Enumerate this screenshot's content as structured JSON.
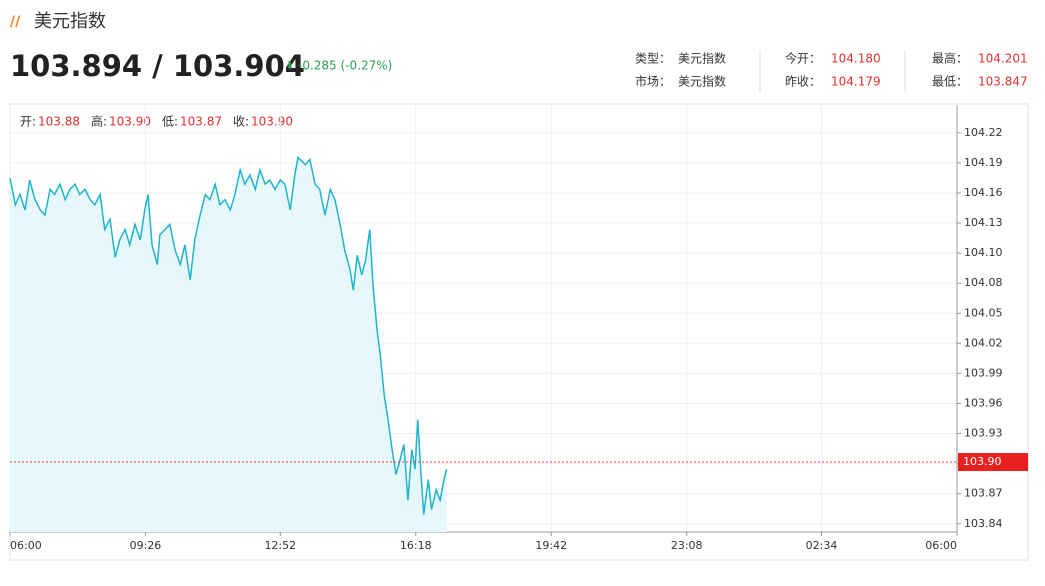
{
  "header": {
    "title": "美元指数",
    "price": "103.894 / 103.904",
    "change": "-0.285 (-0.27%)",
    "info": [
      [
        {
          "label": "类型：",
          "value": "美元指数"
        },
        {
          "label": "今开：",
          "value": "104.180"
        },
        {
          "label": "最高：",
          "value": "104.201"
        }
      ],
      [
        {
          "label": "市场：",
          "value": "美元指数"
        },
        {
          "label": "昨收：",
          "value": "104.179"
        },
        {
          "label": "最低：",
          "value": "103.847"
        }
      ]
    ]
  },
  "ohlc": [
    {
      "label": "开:",
      "value": "103.88"
    },
    {
      "label": "高:",
      "value": "103.90"
    },
    {
      "label": "低:",
      "value": "103.87"
    },
    {
      "label": "收:",
      "value": "103.90"
    }
  ],
  "chart_data": {
    "type": "area",
    "color": "#1eb4cc",
    "fill": "#e6f8fa",
    "grid": true,
    "x": [
      0,
      8,
      15,
      23,
      30,
      38,
      46,
      53,
      61,
      68,
      76,
      84,
      91,
      99,
      106,
      114,
      122,
      129,
      137,
      144,
      152,
      160,
      167,
      175,
      182,
      190,
      198,
      205,
      210,
      216,
      224,
      228,
      236,
      243,
      251,
      259,
      266,
      274,
      281,
      289,
      297,
      304,
      312,
      319,
      327,
      335,
      342,
      350,
      357,
      365,
      373,
      380,
      388,
      395,
      403,
      411,
      418,
      426,
      433,
      438,
      449,
      456,
      464,
      471,
      479,
      487,
      494,
      502,
      509,
      517,
      522,
      528,
      535,
      541,
      547,
      552,
      558,
      563,
      569,
      575,
      581,
      587,
      593,
      599,
      605,
      611,
      616,
      620,
      625,
      629,
      636,
      641,
      648,
      654,
      660,
      664
    ],
    "values": [
      104.176,
      104.15,
      104.16,
      104.145,
      104.174,
      104.155,
      104.145,
      104.14,
      104.165,
      104.16,
      104.17,
      104.155,
      104.165,
      104.17,
      104.16,
      104.165,
      104.155,
      104.15,
      104.16,
      104.126,
      104.136,
      104.099,
      104.116,
      104.126,
      104.111,
      104.131,
      104.116,
      104.145,
      104.16,
      104.111,
      104.092,
      104.121,
      104.126,
      104.131,
      104.106,
      104.092,
      104.111,
      104.077,
      104.116,
      104.14,
      104.16,
      104.155,
      104.17,
      104.15,
      104.155,
      104.145,
      104.16,
      104.184,
      104.17,
      104.179,
      104.165,
      104.184,
      104.17,
      104.174,
      104.165,
      104.174,
      104.17,
      104.145,
      104.179,
      104.196,
      104.189,
      104.194,
      104.17,
      104.165,
      104.14,
      104.165,
      104.155,
      104.131,
      104.106,
      104.087,
      104.067,
      104.101,
      104.082,
      104.097,
      104.126,
      104.072,
      104.029,
      104.004,
      103.965,
      103.941,
      103.912,
      103.888,
      103.902,
      103.917,
      103.863,
      103.912,
      103.893,
      103.941,
      103.888,
      103.849,
      103.883,
      103.854,
      103.873,
      103.863,
      103.883,
      103.893
    ],
    "xlim": [
      0,
      1440
    ],
    "xticks": [
      {
        "value": 0,
        "label": "06:00"
      },
      {
        "value": 206,
        "label": "09:26"
      },
      {
        "value": 411,
        "label": "12:52"
      },
      {
        "value": 617,
        "label": "16:18"
      },
      {
        "value": 823,
        "label": "19:42"
      },
      {
        "value": 1029,
        "label": "23:08"
      },
      {
        "value": 1234,
        "label": "02:34"
      },
      {
        "value": 1440,
        "label": "06:00"
      }
    ],
    "ylim": [
      103.832,
      104.247
    ],
    "yticks": [
      {
        "value": 103.84,
        "label": "103.84"
      },
      {
        "value": 103.8692,
        "label": "103.87"
      },
      {
        "value": 103.8985,
        "label": "103.90"
      },
      {
        "value": 103.9277,
        "label": "103.93"
      },
      {
        "value": 103.9569,
        "label": "103.96"
      },
      {
        "value": 103.9862,
        "label": "103.99"
      },
      {
        "value": 104.0154,
        "label": "104.02"
      },
      {
        "value": 104.0446,
        "label": "104.05"
      },
      {
        "value": 104.0738,
        "label": "104.08"
      },
      {
        "value": 104.1031,
        "label": "104.10"
      },
      {
        "value": 104.1323,
        "label": "104.13"
      },
      {
        "value": 104.1615,
        "label": "104.16"
      },
      {
        "value": 104.1908,
        "label": "104.19"
      },
      {
        "value": 104.22,
        "label": "104.22"
      }
    ],
    "last": {
      "value": 103.9,
      "label": "103.90"
    }
  }
}
